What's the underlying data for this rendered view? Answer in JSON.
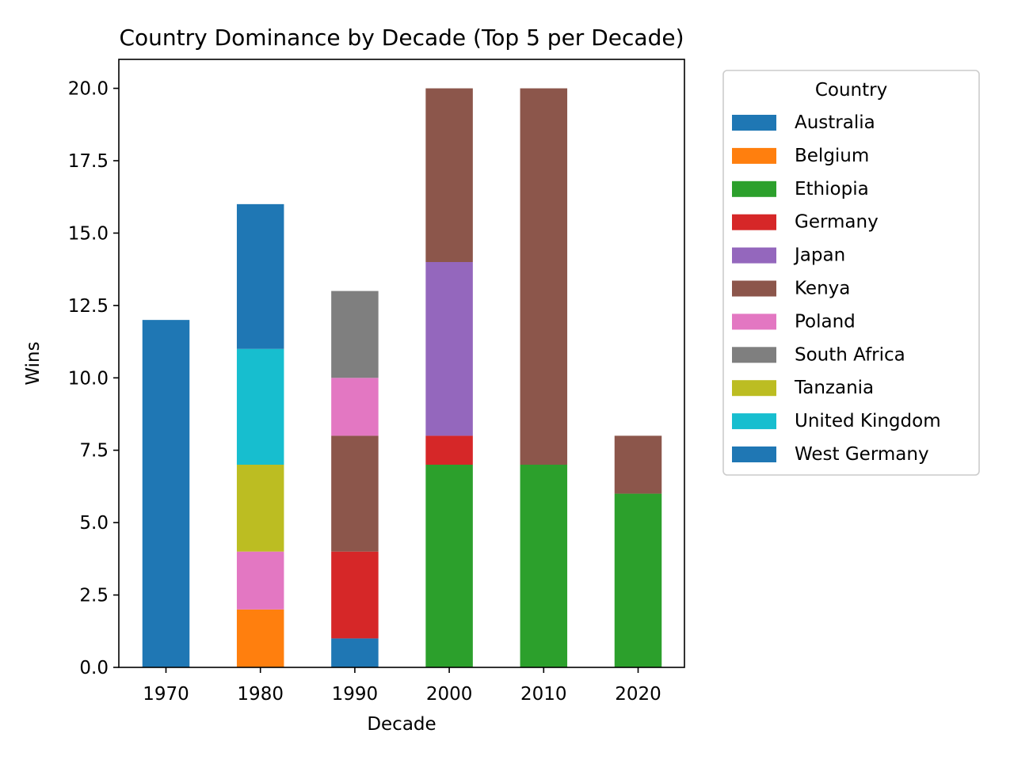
{
  "chart_data": {
    "type": "bar",
    "stacked": true,
    "title": "Country Dominance by Decade (Top 5 per Decade)",
    "xlabel": "Decade",
    "ylabel": "Wins",
    "categories": [
      "1970",
      "1980",
      "1990",
      "2000",
      "2010",
      "2020"
    ],
    "ylim": [
      0,
      21
    ],
    "yticks": [
      "0.0",
      "2.5",
      "5.0",
      "7.5",
      "10.0",
      "12.5",
      "15.0",
      "17.5",
      "20.0"
    ],
    "grid": false,
    "legend": {
      "title": "Country",
      "position": "outside-right"
    },
    "series": [
      {
        "name": "Australia",
        "color": "#1f77b4",
        "values": [
          0,
          0,
          1,
          0,
          0,
          0
        ]
      },
      {
        "name": "Belgium",
        "color": "#ff7f0e",
        "values": [
          0,
          2,
          0,
          0,
          0,
          0
        ]
      },
      {
        "name": "Ethiopia",
        "color": "#2ca02c",
        "values": [
          0,
          0,
          0,
          7,
          7,
          6
        ]
      },
      {
        "name": "Germany",
        "color": "#d62728",
        "values": [
          0,
          0,
          3,
          1,
          0,
          0
        ]
      },
      {
        "name": "Japan",
        "color": "#9467bd",
        "values": [
          0,
          0,
          0,
          6,
          0,
          0
        ]
      },
      {
        "name": "Kenya",
        "color": "#8c564b",
        "values": [
          0,
          0,
          4,
          6,
          13,
          2
        ]
      },
      {
        "name": "Poland",
        "color": "#e377c2",
        "values": [
          0,
          2,
          2,
          0,
          0,
          0
        ]
      },
      {
        "name": "South Africa",
        "color": "#7f7f7f",
        "values": [
          0,
          0,
          3,
          0,
          0,
          0
        ]
      },
      {
        "name": "Tanzania",
        "color": "#bcbd22",
        "values": [
          0,
          3,
          0,
          0,
          0,
          0
        ]
      },
      {
        "name": "United Kingdom",
        "color": "#17becf",
        "values": [
          0,
          4,
          0,
          0,
          0,
          0
        ]
      },
      {
        "name": "West Germany",
        "color": "#1f77b4",
        "values": [
          12,
          5,
          0,
          0,
          0,
          0
        ]
      }
    ]
  }
}
